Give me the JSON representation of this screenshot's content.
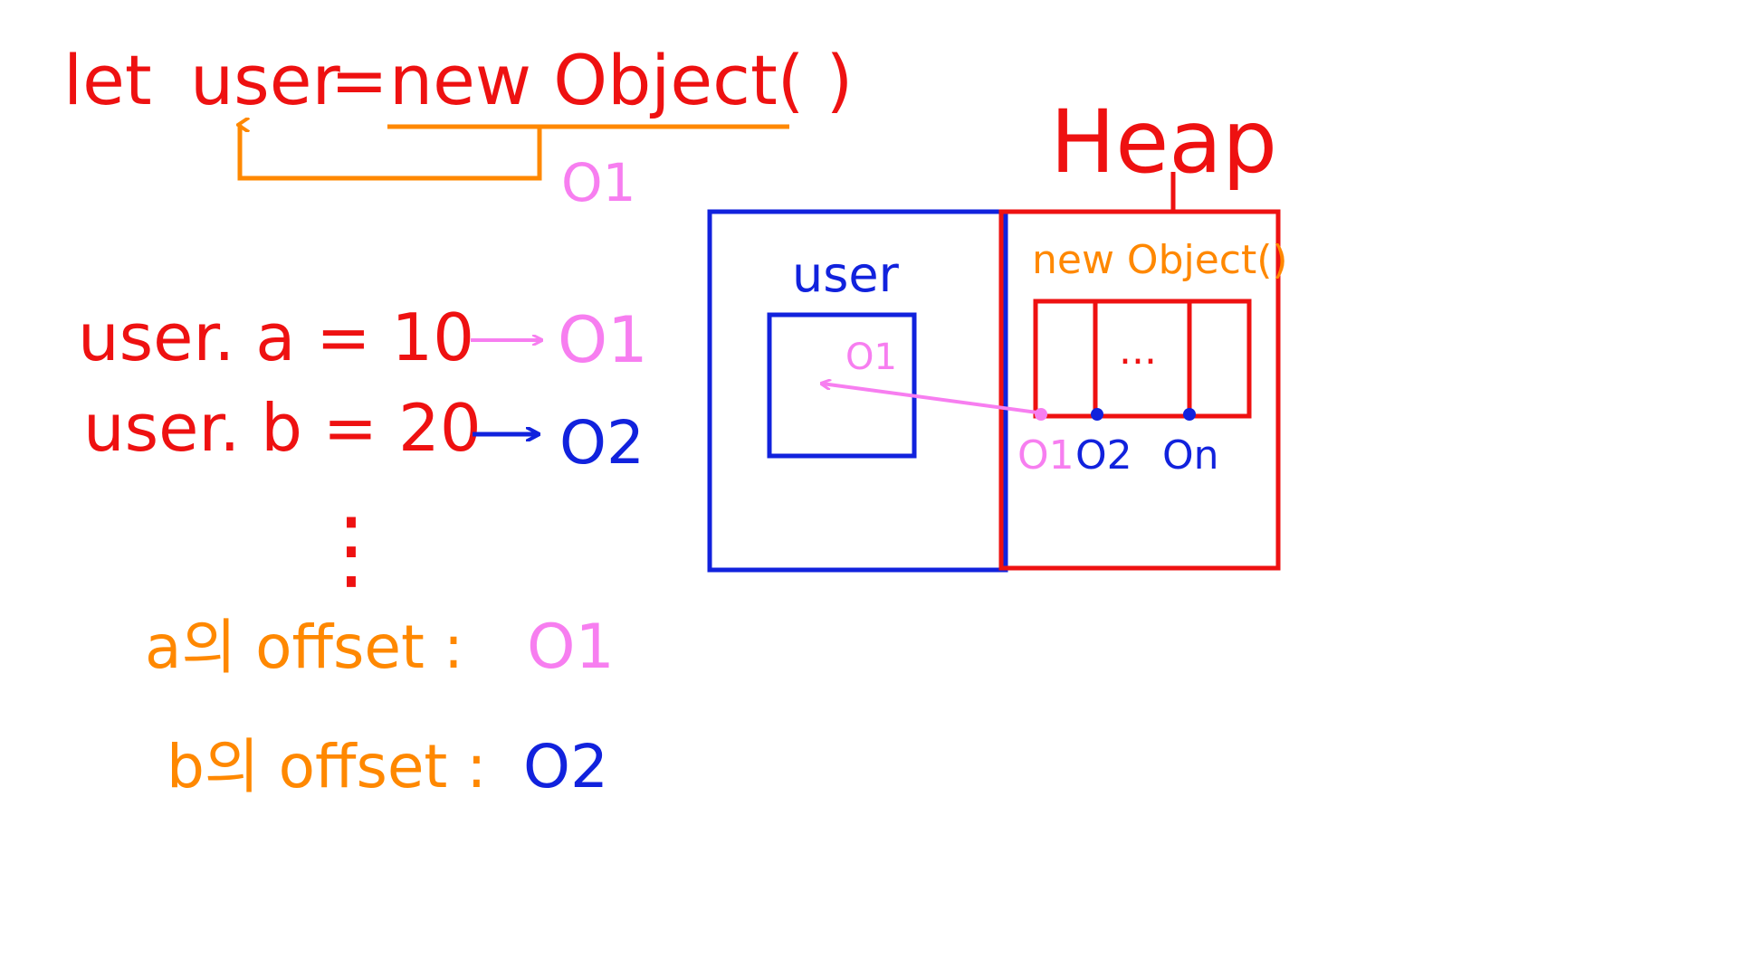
{
  "code": {
    "line1": {
      "let": "let",
      "user": "user",
      "eq": "=",
      "new_object": "new Object( )",
      "ref_label": "O1"
    },
    "assign_a": {
      "text": "user. a = 10",
      "target": "O1"
    },
    "assign_b": {
      "text": "user. b = 20",
      "target": "O2"
    },
    "ellipsis": "⋮",
    "offset_a": {
      "label": "a의 offset :",
      "value": "O1"
    },
    "offset_b": {
      "label": "b의 offset :",
      "value": "O2"
    }
  },
  "memory": {
    "heap_title": "Heap",
    "stack_var_label": "user",
    "stack_ref_value": "O1",
    "heap_object_label": "new Object()",
    "slot_ellipsis": "...",
    "offsets": [
      "O1",
      "O2",
      "On"
    ]
  },
  "colors": {
    "red": "#ee1111",
    "orange": "#ff8800",
    "pink": "#f77ef0",
    "blue": "#1122dd"
  }
}
